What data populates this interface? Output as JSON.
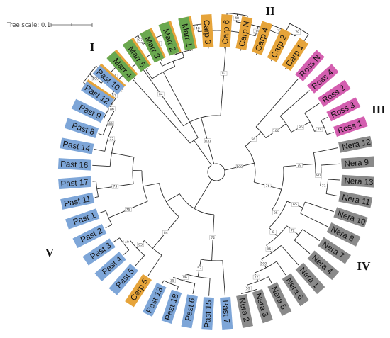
{
  "scale": {
    "label": "Tree scale: 0.1"
  },
  "colors": {
    "Marr": "#6aa84f",
    "Carp": "#e6a43a",
    "Ross": "#d45fb0",
    "Nera": "#8a8a8a",
    "Past": "#7ea6d8"
  },
  "clades": [
    {
      "id": "I",
      "label": "I"
    },
    {
      "id": "II",
      "label": "II"
    },
    {
      "id": "III",
      "label": "III"
    },
    {
      "id": "IV",
      "label": "IV"
    },
    {
      "id": "V",
      "label": "V"
    }
  ],
  "leaves": [
    {
      "label": "Carp 9",
      "group": "Carp"
    },
    {
      "label": "Carp 8",
      "group": "Carp"
    },
    {
      "label": "Carp 7",
      "group": "Carp"
    },
    {
      "label": "Carp 11",
      "group": "Carp"
    },
    {
      "label": "Carp 10",
      "group": "Carp"
    },
    {
      "label": "Carp 12",
      "group": "Carp"
    },
    {
      "label": "Carp 13",
      "group": "Carp"
    },
    {
      "label": "Carp 3",
      "group": "Carp"
    },
    {
      "label": "Carp 6",
      "group": "Carp"
    },
    {
      "label": "Carp N",
      "group": "Carp"
    },
    {
      "label": "Carp 4",
      "group": "Carp"
    },
    {
      "label": "Carp 2",
      "group": "Carp"
    },
    {
      "label": "Carp 1",
      "group": "Carp"
    },
    {
      "label": "Ross N",
      "group": "Ross"
    },
    {
      "label": "Ross 4",
      "group": "Ross"
    },
    {
      "label": "Ross 2",
      "group": "Ross"
    },
    {
      "label": "Ross 3",
      "group": "Ross"
    },
    {
      "label": "Ross 1",
      "group": "Ross"
    },
    {
      "label": "Nera 12",
      "group": "Nera"
    },
    {
      "label": "Nera 9",
      "group": "Nera"
    },
    {
      "label": "Nera 13",
      "group": "Nera"
    },
    {
      "label": "Nera 11",
      "group": "Nera"
    },
    {
      "label": "Nera 10",
      "group": "Nera"
    },
    {
      "label": "Nera 8",
      "group": "Nera"
    },
    {
      "label": "Nera 7",
      "group": "Nera"
    },
    {
      "label": "Nera 4",
      "group": "Nera"
    },
    {
      "label": "Nera 1",
      "group": "Nera"
    },
    {
      "label": "Nera 6",
      "group": "Nera"
    },
    {
      "label": "Nera 5",
      "group": "Nera"
    },
    {
      "label": "Nera 3",
      "group": "Nera"
    },
    {
      "label": "Nera 2",
      "group": "Nera"
    },
    {
      "label": "Past 7",
      "group": "Past"
    },
    {
      "label": "Past 15",
      "group": "Past"
    },
    {
      "label": "Past 6",
      "group": "Past"
    },
    {
      "label": "Past 18",
      "group": "Past"
    },
    {
      "label": "Past 13",
      "group": "Past"
    },
    {
      "label": "Carp 5",
      "group": "Carp"
    },
    {
      "label": "Past 5",
      "group": "Past"
    },
    {
      "label": "Past 4",
      "group": "Past"
    },
    {
      "label": "Past 3",
      "group": "Past"
    },
    {
      "label": "Past 2",
      "group": "Past"
    },
    {
      "label": "Past 1",
      "group": "Past"
    },
    {
      "label": "Past 11",
      "group": "Past"
    },
    {
      "label": "Past 17",
      "group": "Past"
    },
    {
      "label": "Past 16",
      "group": "Past"
    },
    {
      "label": "Past 14",
      "group": "Past"
    },
    {
      "label": "Past 8",
      "group": "Past"
    },
    {
      "label": "Past 9",
      "group": "Past"
    },
    {
      "label": "Past 12",
      "group": "Past"
    },
    {
      "label": "Past 10",
      "group": "Past"
    },
    {
      "label": "Marr 4",
      "group": "Marr"
    },
    {
      "label": "Marr 5",
      "group": "Marr"
    },
    {
      "label": "Marr 3",
      "group": "Marr"
    },
    {
      "label": "Marr 2",
      "group": "Marr"
    },
    {
      "label": "Marr 1",
      "group": "Marr"
    }
  ],
  "bootstrap_labels": [
    "100",
    "91",
    "97",
    "86",
    "64",
    "48",
    "48",
    "79",
    "55",
    "100",
    "92",
    "100",
    "79",
    "85",
    "100",
    "56",
    "71",
    "80",
    "79",
    "65",
    "72",
    "59",
    "77",
    "100",
    "95",
    "8",
    "95",
    "76",
    "100",
    "35",
    "86",
    "53",
    "72",
    "49",
    "85",
    "84",
    "75",
    "73",
    "57",
    "86",
    "83",
    "72"
  ]
}
